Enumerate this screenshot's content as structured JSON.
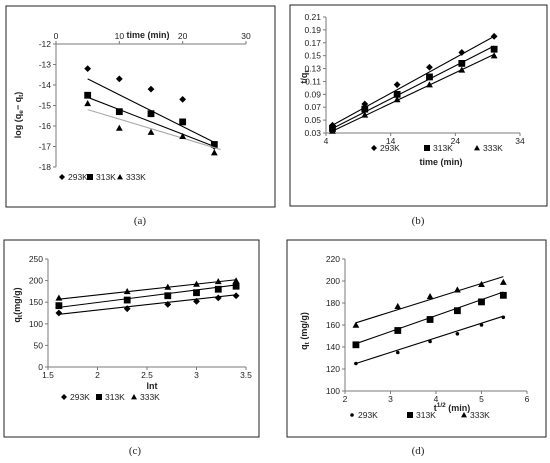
{
  "chart_data": [
    {
      "type": "scatter",
      "panel": "(a)",
      "xlabel": "time (min)",
      "ylabel": "log (q_e−q_t)",
      "ylabel_main": "log (q",
      "ylabel_sub1": "e",
      "ylabel_mid": "− q",
      "ylabel_sub2": "t",
      "ylabel_end": ")",
      "xlim": [
        0,
        30
      ],
      "ylim": [
        -18,
        -12
      ],
      "xticks": [
        0,
        10,
        20,
        30
      ],
      "yticks": [
        -12,
        -13,
        -14,
        -15,
        -16,
        -17,
        -18
      ],
      "x_axis_position": "top",
      "series": [
        {
          "name": "293K",
          "marker": "diamond",
          "color": "#000000",
          "x": [
            5,
            10,
            15,
            20,
            25
          ],
          "y": [
            -13.2,
            -13.7,
            -14.2,
            -14.7,
            -17.0
          ],
          "fit": [
            [
              5,
              -13.7
            ],
            [
              25,
              -16.8
            ]
          ]
        },
        {
          "name": "313K",
          "marker": "square",
          "color": "#000000",
          "x": [
            5,
            10,
            15,
            20,
            25
          ],
          "y": [
            -14.5,
            -15.3,
            -15.4,
            -15.8,
            -16.9
          ],
          "fit": [
            [
              5,
              -14.6
            ],
            [
              25,
              -17.0
            ]
          ]
        },
        {
          "name": "333K",
          "marker": "triangle",
          "color": "#000000",
          "fit_color": "#a8a8a8",
          "x": [
            5,
            10,
            15,
            20,
            25
          ],
          "y": [
            -14.9,
            -16.1,
            -16.3,
            -16.5,
            -17.3
          ],
          "fit": [
            [
              5,
              -15.2
            ],
            [
              26,
              -17.15
            ]
          ]
        }
      ],
      "legend": [
        "293K",
        "313K",
        "333K"
      ]
    },
    {
      "type": "scatter",
      "panel": "(b)",
      "xlabel": "time (min)",
      "ylabel": "t/q_t",
      "ylabel_main": "t/q",
      "ylabel_sub": "t",
      "xlim": [
        4,
        34
      ],
      "ylim": [
        0.03,
        0.21
      ],
      "xticks": [
        4,
        14,
        24,
        34
      ],
      "yticks": [
        "0.03",
        "0.05",
        "0.07",
        "0.09",
        "0.11",
        "0.13",
        "0.15",
        "0.17",
        "0.19",
        "0.21"
      ],
      "series": [
        {
          "name": "293K",
          "marker": "diamond",
          "color": "#000000",
          "x": [
            5,
            10,
            15,
            20,
            25,
            30
          ],
          "y": [
            0.042,
            0.075,
            0.105,
            0.132,
            0.155,
            0.18
          ],
          "fit": [
            [
              5,
              0.042
            ],
            [
              30,
              0.18
            ]
          ]
        },
        {
          "name": "313K",
          "marker": "square",
          "color": "#000000",
          "x": [
            5,
            10,
            15,
            20,
            25,
            30
          ],
          "y": [
            0.037,
            0.067,
            0.09,
            0.117,
            0.138,
            0.16
          ],
          "fit": [
            [
              5,
              0.037
            ],
            [
              30,
              0.165
            ]
          ]
        },
        {
          "name": "333K",
          "marker": "triangle",
          "color": "#000000",
          "x": [
            5,
            10,
            15,
            20,
            25,
            30
          ],
          "y": [
            0.033,
            0.058,
            0.082,
            0.105,
            0.128,
            0.15
          ],
          "fit": [
            [
              5,
              0.033
            ],
            [
              30,
              0.152
            ]
          ]
        }
      ],
      "legend": [
        "293K",
        "313K",
        "333K"
      ]
    },
    {
      "type": "scatter",
      "panel": "(c)",
      "xlabel": "lnt",
      "ylabel": "q_t(mg/g)",
      "ylabel_main": "q",
      "ylabel_sub": "t",
      "ylabel_end": "(mg/g)",
      "xlim": [
        1.5,
        3.5
      ],
      "ylim": [
        0,
        250
      ],
      "xticks": [
        "1.5",
        "2",
        "2.5",
        "3",
        "3.5"
      ],
      "yticks": [
        0,
        50,
        100,
        150,
        200,
        250
      ],
      "series": [
        {
          "name": "293K",
          "marker": "diamond",
          "color": "#000000",
          "x": [
            1.61,
            2.3,
            2.71,
            3.0,
            3.22,
            3.4
          ],
          "y": [
            125,
            135,
            145,
            152,
            160,
            165
          ],
          "fit": [
            [
              1.61,
              122
            ],
            [
              3.4,
              167
            ]
          ]
        },
        {
          "name": "313K",
          "marker": "square",
          "color": "#000000",
          "x": [
            1.61,
            2.3,
            2.71,
            3.0,
            3.22,
            3.4
          ],
          "y": [
            142,
            155,
            165,
            172,
            180,
            187
          ],
          "fit": [
            [
              1.61,
              138
            ],
            [
              3.4,
              190
            ]
          ]
        },
        {
          "name": "333K",
          "marker": "triangle",
          "color": "#000000",
          "x": [
            1.61,
            2.3,
            2.71,
            3.0,
            3.22,
            3.4
          ],
          "y": [
            160,
            175,
            185,
            192,
            198,
            200
          ],
          "fit": [
            [
              1.61,
              157
            ],
            [
              3.4,
              202
            ]
          ]
        }
      ],
      "legend": [
        "293K",
        "313K",
        "333K"
      ]
    },
    {
      "type": "scatter",
      "panel": "(d)",
      "xlabel": "t^{1/2} (min)",
      "xlabel_main": "t",
      "xlabel_sup": "1/2",
      "xlabel_end": " (min)",
      "ylabel": "q_t (mg/g)",
      "ylabel_main": "q",
      "ylabel_sub": "t",
      "ylabel_end": " (mg/g)",
      "xlim": [
        2,
        6
      ],
      "ylim": [
        100,
        220
      ],
      "xticks": [
        2,
        3,
        4,
        5,
        6
      ],
      "yticks": [
        100,
        120,
        140,
        160,
        180,
        200,
        220
      ],
      "series": [
        {
          "name": "293K",
          "marker": "dot",
          "color": "#000000",
          "x": [
            2.24,
            3.16,
            3.87,
            4.47,
            5.0,
            5.48
          ],
          "y": [
            125,
            135,
            145,
            152,
            160,
            167
          ],
          "fit": [
            [
              2.24,
              125
            ],
            [
              5.48,
              168
            ]
          ]
        },
        {
          "name": "313K",
          "marker": "square",
          "color": "#000000",
          "x": [
            2.24,
            3.16,
            3.87,
            4.47,
            5.0,
            5.48
          ],
          "y": [
            142,
            155,
            165,
            173,
            181,
            187
          ],
          "fit": [
            [
              2.24,
              143
            ],
            [
              5.48,
              190
            ]
          ]
        },
        {
          "name": "333K",
          "marker": "triangle",
          "color": "#000000",
          "x": [
            2.24,
            3.16,
            3.87,
            4.47,
            5.0,
            5.48
          ],
          "y": [
            160,
            177,
            186,
            192,
            197,
            199
          ],
          "fit": [
            [
              2.24,
              162
            ],
            [
              5.48,
              204
            ]
          ]
        }
      ],
      "legend": [
        "293K",
        "313K",
        "333K"
      ]
    }
  ]
}
